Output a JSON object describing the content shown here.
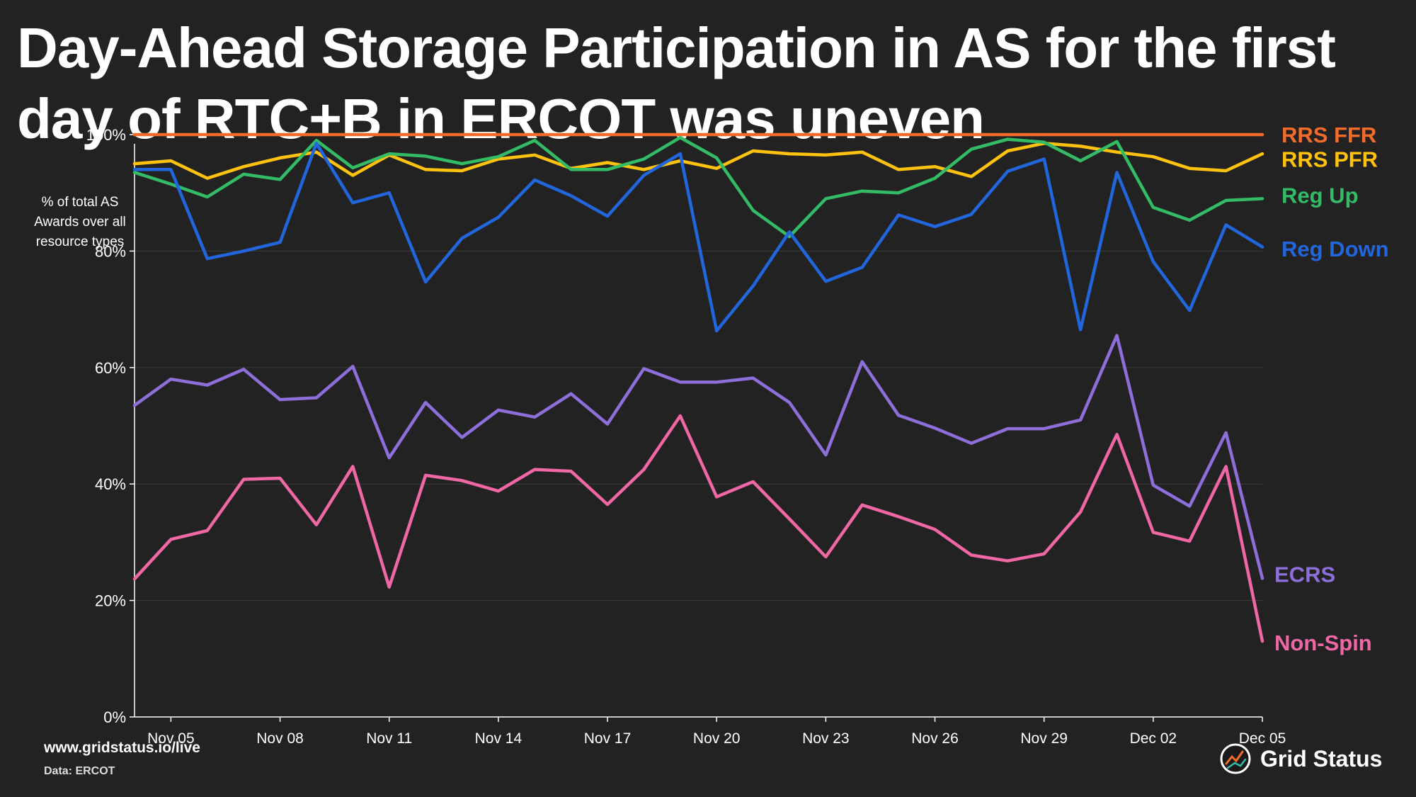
{
  "title": {
    "line1": "Day-Ahead Storage Participation in AS for the first",
    "line2": "day of RTC+B in ERCOT was uneven"
  },
  "footer": {
    "url": "www.gridstatus.io/live",
    "source": "Data: ERCOT",
    "brand": "Grid Status",
    "brand_icon": "grid-status-logo-icon"
  },
  "chart_data": {
    "type": "line",
    "ylabel": "% of total AS Awards over all resource types",
    "ylabel_lines": [
      "% of total AS",
      "Awards over all",
      "resource types"
    ],
    "ylim": [
      0,
      100
    ],
    "y_ticks": [
      "0%",
      "20%",
      "40%",
      "60%",
      "80%",
      "100%"
    ],
    "y_tick_values": [
      0,
      20,
      40,
      60,
      80,
      100
    ],
    "x_range": [
      "2025-11-04",
      "2025-12-05"
    ],
    "x_ticks": [
      "Nov 05",
      "Nov 08",
      "Nov 11",
      "Nov 14",
      "Nov 17",
      "Nov 20",
      "Nov 23",
      "Nov 26",
      "Nov 29",
      "Dec 02",
      "Dec 05"
    ],
    "x_tick_dates": [
      "2025-11-05",
      "2025-11-08",
      "2025-11-11",
      "2025-11-14",
      "2025-11-17",
      "2025-11-20",
      "2025-11-23",
      "2025-11-26",
      "2025-11-29",
      "2025-12-02",
      "2025-12-05"
    ],
    "grid": "horizontal",
    "legend": "direct labels at right end of lines",
    "x": [
      "2025-11-04",
      "2025-11-05",
      "2025-11-06",
      "2025-11-07",
      "2025-11-08",
      "2025-11-09",
      "2025-11-10",
      "2025-11-11",
      "2025-11-12",
      "2025-11-13",
      "2025-11-14",
      "2025-11-15",
      "2025-11-16",
      "2025-11-17",
      "2025-11-18",
      "2025-11-19",
      "2025-11-20",
      "2025-11-21",
      "2025-11-22",
      "2025-11-23",
      "2025-11-24",
      "2025-11-25",
      "2025-11-26",
      "2025-11-27",
      "2025-11-28",
      "2025-11-29",
      "2025-11-30",
      "2025-12-01",
      "2025-12-02",
      "2025-12-03",
      "2025-12-04",
      "2025-12-05"
    ],
    "series": [
      {
        "name": "RRS FFR",
        "color": "#F26B2A",
        "values": [
          100,
          100,
          100,
          100,
          100,
          100,
          100,
          100,
          100,
          100,
          100,
          100,
          100,
          100,
          100,
          100,
          100,
          100,
          100,
          100,
          100,
          100,
          100,
          100,
          100,
          100,
          100,
          100,
          100,
          100,
          100,
          100
        ]
      },
      {
        "name": "RRS PFR",
        "color": "#FFC20E",
        "values": [
          95,
          95.5,
          92.5,
          94.5,
          96,
          97,
          93,
          96.5,
          94,
          93.8,
          95.8,
          96.5,
          94.2,
          95.2,
          94,
          95.5,
          94.2,
          97.2,
          96.7,
          96.5,
          97,
          94,
          94.5,
          92.8,
          97.2,
          98.5,
          98,
          97,
          96.2,
          94.2,
          93.8,
          96.7
        ]
      },
      {
        "name": "Reg Up",
        "color": "#33BB66",
        "values": [
          93.5,
          91.5,
          89.3,
          93.2,
          92.3,
          99,
          94.3,
          96.7,
          96.3,
          95,
          96.2,
          99,
          94,
          94,
          95.8,
          99.5,
          96,
          87,
          82.5,
          89,
          90.3,
          90,
          92.5,
          97.5,
          99.2,
          98.7,
          95.5,
          98.8,
          87.5,
          85.3,
          88.7,
          89
        ]
      },
      {
        "name": "Reg Down",
        "color": "#2266DD",
        "values": [
          94,
          94,
          78.7,
          80,
          81.5,
          98.5,
          88.3,
          90,
          74.7,
          82.2,
          85.8,
          92.2,
          89.5,
          86,
          93,
          96.7,
          66.3,
          74,
          83.3,
          74.8,
          77.2,
          86.2,
          84.2,
          86.3,
          93.7,
          95.8,
          66.5,
          93.5,
          78.2,
          69.8,
          84.5,
          80.7
        ]
      },
      {
        "name": "ECRS",
        "color": "#8E6FDA",
        "values": [
          53.5,
          58,
          57,
          59.7,
          54.5,
          54.8,
          60.2,
          44.5,
          54,
          48,
          52.7,
          51.5,
          55.5,
          50.3,
          59.8,
          57.5,
          57.5,
          58.2,
          54,
          45,
          61,
          51.8,
          49.6,
          47,
          49.5,
          49.5,
          51,
          65.5,
          39.8,
          36.2,
          48.8,
          23.8
        ]
      },
      {
        "name": "Non-Spin",
        "color": "#F067A6",
        "values": [
          23.7,
          30.5,
          32,
          40.8,
          41,
          33,
          43,
          22.3,
          41.5,
          40.6,
          38.8,
          42.5,
          42.2,
          36.5,
          42.5,
          51.7,
          37.8,
          40.4,
          34,
          27.5,
          36.4,
          34.4,
          32.2,
          27.8,
          26.8,
          28,
          35.2,
          48.5,
          31.7,
          30.2,
          43,
          13
        ]
      }
    ]
  }
}
